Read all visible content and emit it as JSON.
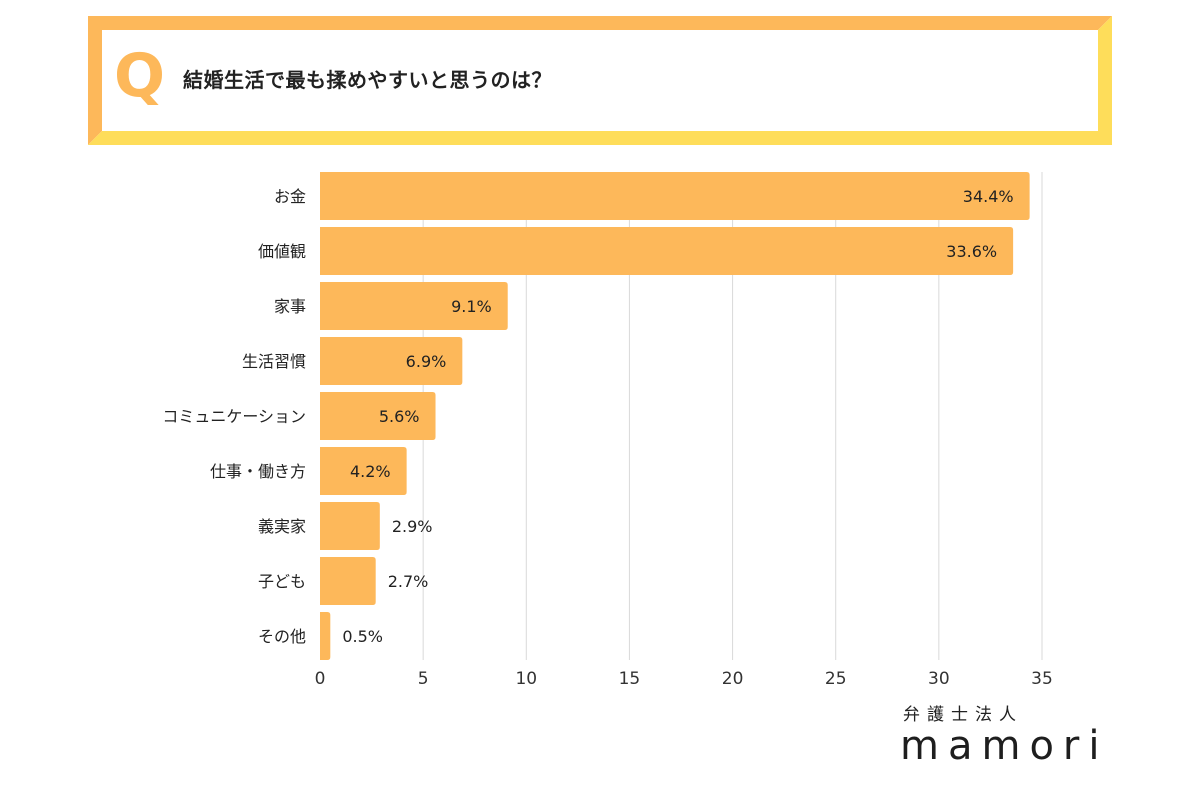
{
  "question": {
    "letter": "Q",
    "title": "結婚生活で最も揉めやすいと思うのは？"
  },
  "colors": {
    "bar": "#FDB85A",
    "frame_top": "#FDB85A",
    "frame_bottom": "#FEDD5A",
    "grid": "#D9D9D9",
    "text": "#222222"
  },
  "chart_data": {
    "type": "bar",
    "orientation": "horizontal",
    "title": "結婚生活で最も揉めやすいと思うのは？",
    "categories": [
      "お金",
      "価値観",
      "家事",
      "生活習慣",
      "コミュニケーション",
      "仕事・働き方",
      "義実家",
      "子ども",
      "その他"
    ],
    "values": [
      34.4,
      33.6,
      9.1,
      6.9,
      5.6,
      4.2,
      2.9,
      2.7,
      0.5
    ],
    "value_labels": [
      "34.4%",
      "33.6%",
      "9.1%",
      "6.9%",
      "5.6%",
      "4.2%",
      "2.9%",
      "2.7%",
      "0.5%"
    ],
    "xlim": [
      0,
      35
    ],
    "xticks": [
      0,
      5,
      10,
      15,
      20,
      25,
      30,
      35
    ],
    "xtick_labels": [
      "0",
      "5",
      "10",
      "15",
      "20",
      "25",
      "30",
      "35"
    ],
    "xlabel": "",
    "ylabel": "",
    "grid": true
  },
  "logo": {
    "sub": "弁護士法人",
    "main": "mamori"
  }
}
